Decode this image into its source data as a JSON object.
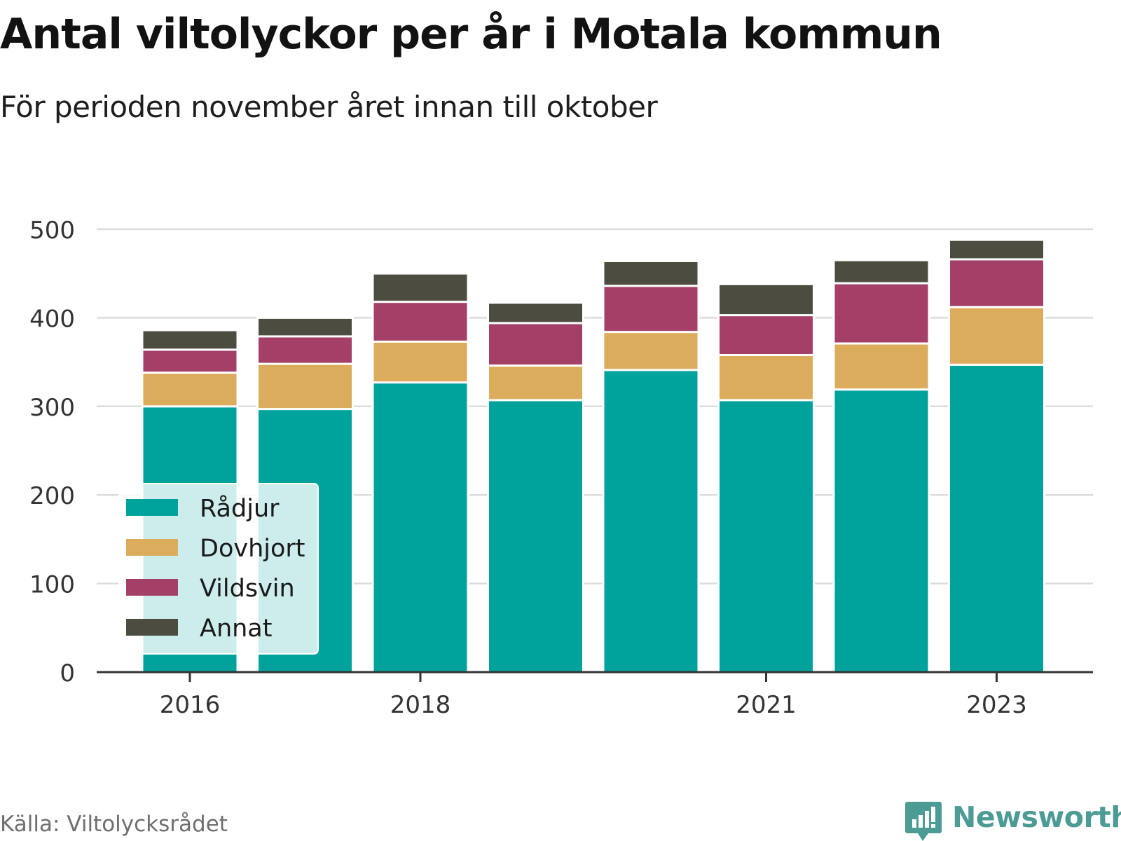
{
  "header": {
    "title": "Antal viltolyckor per år i Motala kommun",
    "subtitle": "För perioden november året innan till oktober"
  },
  "footer": {
    "source": "Källa: Viltolycksrådet",
    "brand": "Newsworthy"
  },
  "colors": {
    "Rådjur": "#00a39b",
    "Dovhjort": "#dbac5c",
    "Vildsvin": "#a43f67",
    "Annat": "#4c4c40",
    "grid": "#dcdcdc",
    "axis": "#333333",
    "brand": "#4c9b94"
  },
  "chart_data": {
    "type": "bar",
    "stacked": true,
    "categories": [
      "2016",
      "2017",
      "2018",
      "2019",
      "2020",
      "2021",
      "2022",
      "2023"
    ],
    "tick_labels": [
      "2016",
      "",
      "2018",
      "",
      "",
      "2021",
      "",
      "2023"
    ],
    "series": [
      {
        "name": "Rådjur",
        "values": [
          300,
          297,
          327,
          307,
          341,
          307,
          319,
          347
        ]
      },
      {
        "name": "Dovhjort",
        "values": [
          38,
          51,
          46,
          39,
          43,
          51,
          52,
          65
        ]
      },
      {
        "name": "Vildsvin",
        "values": [
          26,
          31,
          45,
          48,
          52,
          45,
          68,
          54
        ]
      },
      {
        "name": "Annat",
        "values": [
          22,
          21,
          32,
          23,
          28,
          35,
          26,
          22
        ]
      }
    ],
    "yticks": [
      0,
      100,
      200,
      300,
      400,
      500
    ],
    "ylim": [
      0,
      500
    ],
    "grid": true,
    "legend_position": "bottom-left"
  }
}
